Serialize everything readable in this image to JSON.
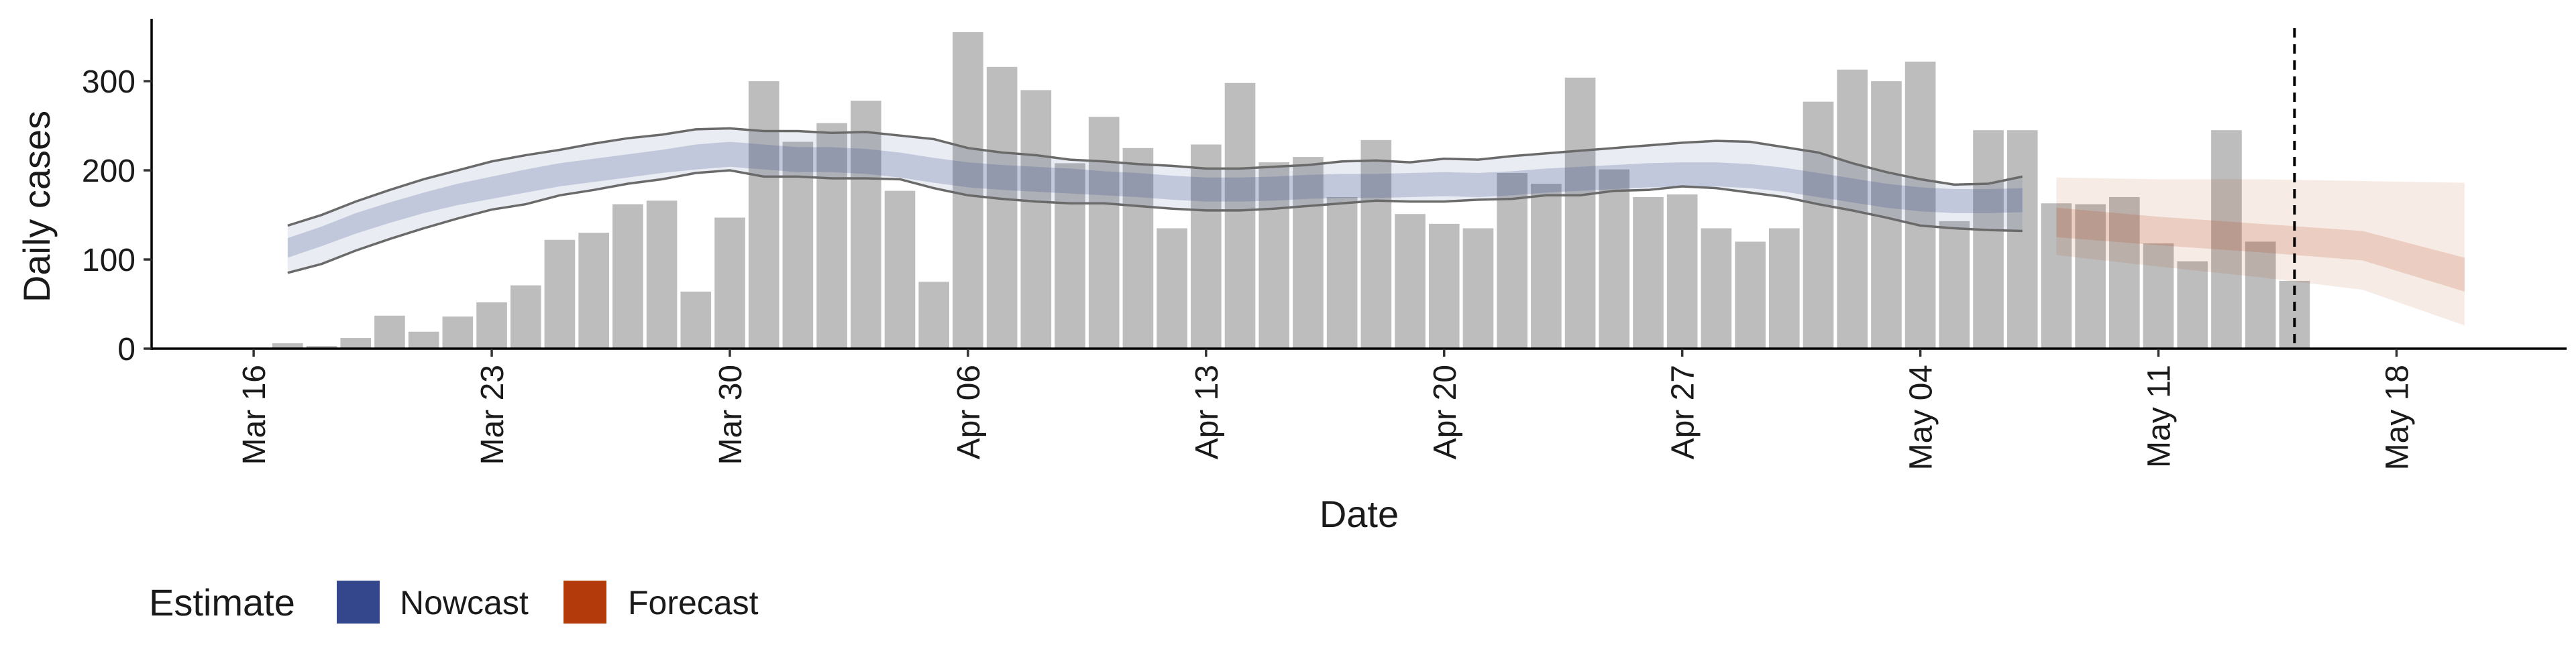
{
  "chart_data": {
    "type": "bar",
    "xlabel": "Date",
    "ylabel": "Daily cases",
    "ylim": [
      0,
      370
    ],
    "y_ticks": [
      0,
      100,
      200,
      300
    ],
    "x_range": [
      "2020-03-13",
      "2020-05-23"
    ],
    "x_ticks": [
      {
        "date": "2020-03-16",
        "label": "Mar 16"
      },
      {
        "date": "2020-03-23",
        "label": "Mar 23"
      },
      {
        "date": "2020-03-30",
        "label": "Mar 30"
      },
      {
        "date": "2020-04-06",
        "label": "Apr 06"
      },
      {
        "date": "2020-04-13",
        "label": "Apr 13"
      },
      {
        "date": "2020-04-20",
        "label": "Apr 20"
      },
      {
        "date": "2020-04-27",
        "label": "Apr 27"
      },
      {
        "date": "2020-05-04",
        "label": "May 04"
      },
      {
        "date": "2020-05-11",
        "label": "May 11"
      },
      {
        "date": "2020-05-18",
        "label": "May 18"
      }
    ],
    "bars": {
      "start_date": "2020-03-17",
      "color": "#bdbdbd",
      "values": [
        6,
        3,
        12,
        37,
        19,
        36,
        52,
        71,
        122,
        130,
        162,
        166,
        64,
        147,
        300,
        232,
        253,
        278,
        177,
        75,
        355,
        316,
        290,
        208,
        260,
        225,
        135,
        229,
        298,
        209,
        215,
        170,
        234,
        151,
        140,
        135,
        197,
        185,
        304,
        201,
        170,
        173,
        135,
        120,
        135,
        277,
        313,
        300,
        322,
        143,
        245,
        245,
        163,
        162,
        170,
        118,
        98,
        245,
        120,
        76
      ]
    },
    "nowcast": {
      "name": "Nowcast",
      "color": "#35478c",
      "start_date": "2020-03-17",
      "dates_note_step": 1,
      "median": [
        112,
        125,
        140,
        152,
        163,
        173,
        180,
        188,
        195,
        200,
        205,
        210,
        215,
        218,
        215,
        212,
        212,
        210,
        206,
        200,
        195,
        192,
        190,
        188,
        185,
        183,
        180,
        178,
        178,
        179,
        181,
        182,
        182,
        183,
        184,
        183,
        185,
        188,
        190,
        192,
        194,
        195,
        195,
        193,
        189,
        183,
        177,
        171,
        167,
        165,
        165,
        166
      ],
      "low50": [
        102,
        115,
        129,
        141,
        152,
        161,
        168,
        175,
        182,
        187,
        192,
        197,
        201,
        204,
        201,
        198,
        198,
        196,
        192,
        186,
        181,
        178,
        176,
        174,
        172,
        170,
        167,
        165,
        165,
        166,
        168,
        169,
        169,
        170,
        171,
        170,
        172,
        175,
        177,
        179,
        181,
        182,
        182,
        180,
        176,
        170,
        164,
        158,
        154,
        152,
        152,
        153
      ],
      "high50": [
        124,
        137,
        152,
        164,
        175,
        185,
        193,
        201,
        208,
        213,
        218,
        223,
        229,
        232,
        229,
        226,
        226,
        224,
        220,
        214,
        209,
        206,
        204,
        202,
        199,
        197,
        194,
        192,
        192,
        193,
        195,
        196,
        196,
        197,
        198,
        197,
        199,
        202,
        204,
        206,
        208,
        209,
        209,
        207,
        203,
        197,
        191,
        185,
        181,
        179,
        179,
        180
      ],
      "low90": [
        85,
        95,
        110,
        123,
        135,
        146,
        156,
        162,
        172,
        178,
        185,
        190,
        197,
        200,
        193,
        193,
        191,
        191,
        190,
        180,
        172,
        168,
        165,
        163,
        163,
        160,
        157,
        155,
        155,
        157,
        160,
        163,
        166,
        165,
        165,
        167,
        168,
        172,
        172,
        177,
        178,
        182,
        180,
        175,
        170,
        162,
        155,
        147,
        138,
        135,
        133,
        132
      ],
      "high90": [
        138,
        150,
        165,
        178,
        190,
        200,
        210,
        217,
        223,
        230,
        236,
        240,
        246,
        247,
        244,
        244,
        242,
        243,
        239,
        235,
        225,
        220,
        217,
        212,
        210,
        207,
        205,
        202,
        202,
        204,
        206,
        210,
        211,
        209,
        213,
        212,
        216,
        219,
        222,
        225,
        228,
        231,
        233,
        232,
        226,
        220,
        208,
        198,
        190,
        184,
        185,
        193
      ]
    },
    "forecast": {
      "name": "Forecast",
      "color": "#b33a0b",
      "dates": [
        "2020-05-08",
        "2020-05-11",
        "2020-05-14",
        "2020-05-17",
        "2020-05-20"
      ],
      "median": [
        140,
        132,
        125,
        117,
        82
      ],
      "low50": [
        125,
        116,
        108,
        99,
        64
      ],
      "high50": [
        158,
        148,
        140,
        132,
        102
      ],
      "low90": [
        105,
        92,
        80,
        66,
        26
      ],
      "high90": [
        192,
        190,
        190,
        188,
        186
      ]
    },
    "reference_line": {
      "date": "2020-05-15",
      "style": "dashed"
    },
    "legend": {
      "title": "Estimate",
      "position": "bottom-left",
      "items": [
        {
          "label": "Nowcast",
          "color": "#35478c"
        },
        {
          "label": "Forecast",
          "color": "#b33a0b"
        }
      ]
    },
    "grid": false
  }
}
